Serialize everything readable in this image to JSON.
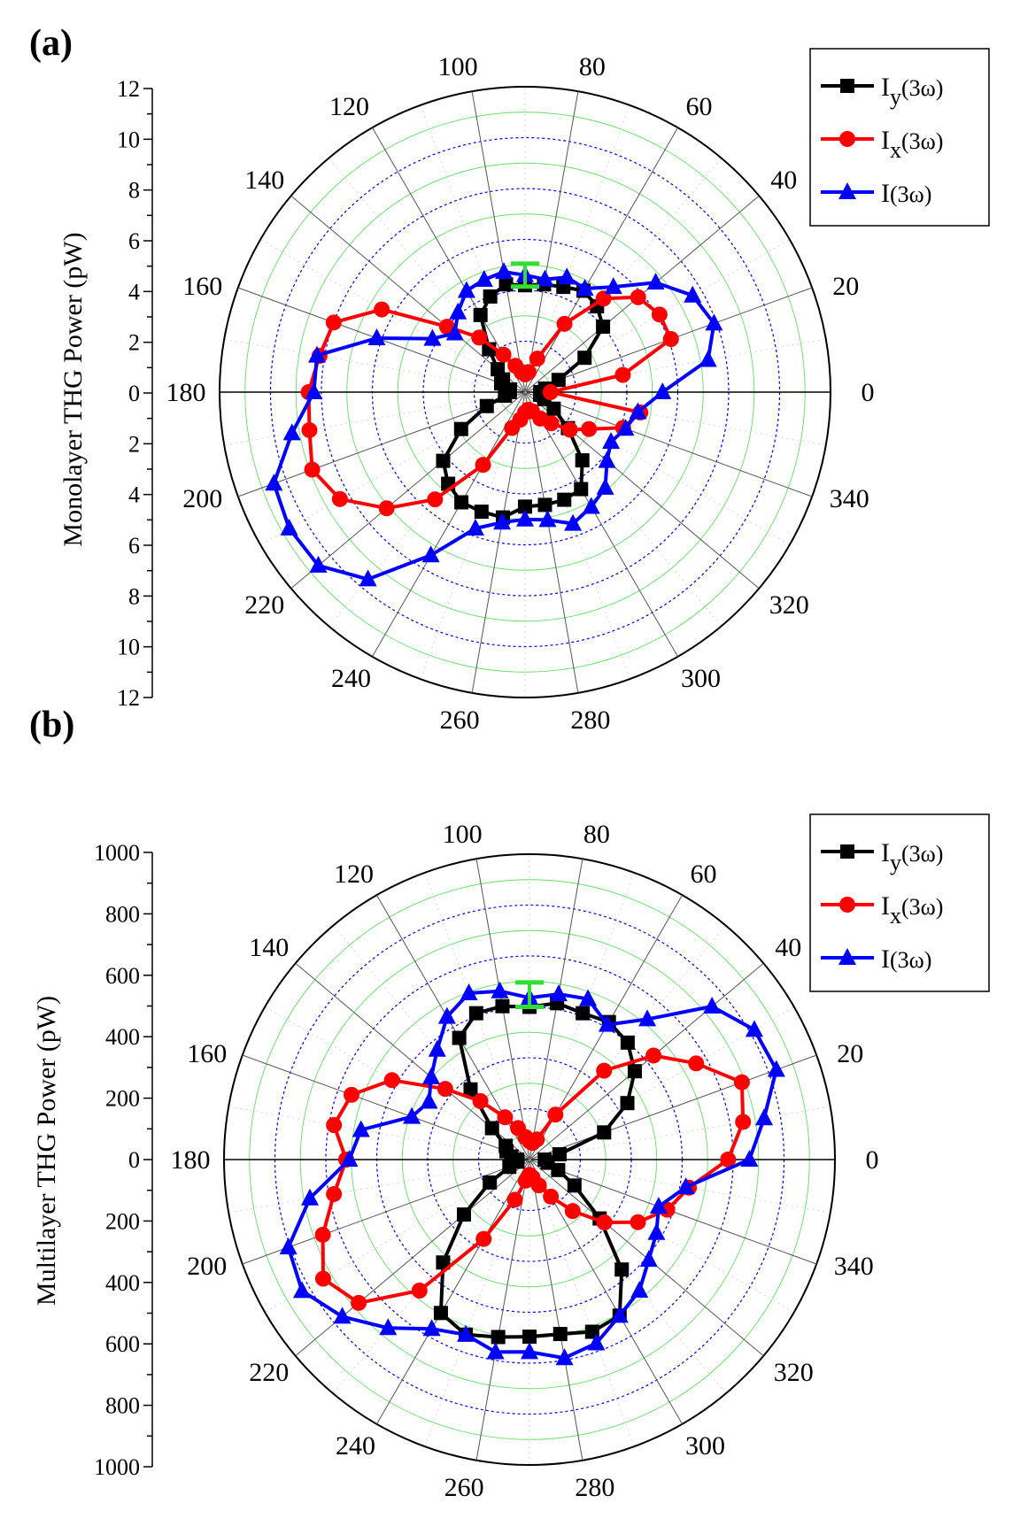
{
  "colors": {
    "Iy": "#000000",
    "Ix": "#ff0000",
    "I": "#0000ff",
    "errorbar": "#33dd33",
    "grid_major": "#0000ff",
    "grid_minor": "#66dd66",
    "spokes": "#555555"
  },
  "chart_data": [
    {
      "type": "polar_line",
      "panel_label": "(a)",
      "ylabel": "Monolayer THG Power (pW)",
      "radial_range": [
        0,
        12
      ],
      "radial_ticks": [
        "0",
        "2",
        "4",
        "6",
        "8",
        "10",
        "12"
      ],
      "angle_ticks": [
        "0",
        "20",
        "40",
        "60",
        "80",
        "100",
        "120",
        "140",
        "160",
        "180",
        "200",
        "220",
        "240",
        "260",
        "280",
        "300",
        "320",
        "340"
      ],
      "angles": [
        0,
        10,
        20,
        30,
        40,
        50,
        60,
        70,
        80,
        90,
        100,
        110,
        120,
        130,
        140,
        150,
        160,
        170,
        180,
        190,
        200,
        210,
        220,
        230,
        240,
        250,
        260,
        270,
        280,
        290,
        300,
        310,
        320,
        330,
        340,
        350
      ],
      "series": [
        {
          "name": "I_y(3ω)",
          "label_main": "I",
          "label_sub": "y",
          "label_rest": "(3ω)",
          "marker": "square",
          "color_key": "Iy",
          "values": [
            0.6,
            0.8,
            1.4,
            2.7,
            4.0,
            4.4,
            4.6,
            4.4,
            4.3,
            4.2,
            4.3,
            4.0,
            3.5,
            2.2,
            1.4,
            1.0,
            1.0,
            0.6,
            0.6,
            0.8,
            1.6,
            2.9,
            4.2,
            4.7,
            5.0,
            5.0,
            5.0,
            4.5,
            4.5,
            4.5,
            4.4,
            3.5,
            2.2,
            1.3,
            0.8,
            0.6
          ]
        },
        {
          "name": "I_x(3ω)",
          "label_main": "I",
          "label_sub": "x",
          "label_rest": "(3ω)",
          "marker": "circle",
          "color_key": "Ix",
          "values": [
            1.0,
            3.9,
            6.1,
            6.1,
            5.8,
            4.8,
            3.1,
            1.4,
            0.8,
            0.7,
            0.8,
            1.1,
            1.7,
            2.8,
            4.0,
            6.5,
            8.0,
            8.2,
            8.5,
            8.6,
            8.9,
            8.4,
            7.1,
            5.5,
            3.3,
            1.5,
            1.1,
            0.8,
            0.7,
            0.8,
            1.2,
            1.6,
            2.3,
            2.9,
            4.1,
            4.6
          ]
        },
        {
          "name": "I(3ω)",
          "label_main": "I",
          "label_sub": "",
          "label_rest": "(3ω)",
          "marker": "triangle",
          "color_key": "I",
          "values": [
            5.4,
            7.3,
            7.9,
            7.6,
            6.7,
            5.4,
            4.7,
            4.8,
            4.5,
            4.6,
            4.8,
            4.7,
            4.6,
            4.1,
            3.6,
            4.2,
            6.2,
            8.3,
            8.3,
            9.3,
            10.5,
            10.7,
            10.6,
            9.6,
            7.4,
            5.7,
            5.2,
            5.0,
            5.1,
            5.5,
            5.2,
            4.9,
            4.2,
            3.9,
            4.2,
            4.5
          ]
        }
      ],
      "errorbar": {
        "angle": 90,
        "value": 4.6,
        "error": 0.45
      }
    },
    {
      "type": "polar_line",
      "panel_label": "(b)",
      "ylabel": "Multilayer THG Power (pW)",
      "radial_range": [
        0,
        1000
      ],
      "radial_ticks": [
        "0",
        "200",
        "400",
        "600",
        "800",
        "1000"
      ],
      "angle_ticks": [
        "0",
        "20",
        "40",
        "60",
        "80",
        "100",
        "120",
        "140",
        "160",
        "180",
        "200",
        "220",
        "240",
        "260",
        "280",
        "300",
        "320",
        "340"
      ],
      "angles": [
        0,
        10,
        20,
        30,
        40,
        50,
        60,
        70,
        80,
        90,
        100,
        110,
        120,
        130,
        140,
        150,
        160,
        170,
        180,
        190,
        200,
        210,
        220,
        230,
        240,
        250,
        260,
        270,
        280,
        290,
        300,
        310,
        320,
        330,
        340,
        350
      ],
      "series": [
        {
          "name": "I_y(3ω)",
          "label_main": "I",
          "label_sub": "y",
          "label_rest": "(3ω)",
          "marker": "square",
          "color_key": "Iy",
          "values": [
            50,
            100,
            260,
            370,
            450,
            500,
            520,
            510,
            520,
            500,
            510,
            510,
            460,
            300,
            160,
            90,
            80,
            60,
            40,
            40,
            70,
            150,
            280,
            440,
            580,
            610,
            590,
            580,
            580,
            600,
            590,
            470,
            300,
            170,
            100,
            60
          ]
        },
        {
          "name": "I_x(3ω)",
          "label_main": "I",
          "label_sub": "x",
          "label_rest": "(3ω)",
          "marker": "circle",
          "color_key": "Ix",
          "values": [
            650,
            710,
            740,
            630,
            530,
            380,
            170,
            70,
            55,
            60,
            75,
            110,
            160,
            250,
            360,
            520,
            620,
            650,
            600,
            650,
            720,
            780,
            730,
            560,
            300,
            140,
            70,
            50,
            60,
            90,
            140,
            220,
            320,
            410,
            480,
            530
          ]
        },
        {
          "name": "I(3ω)",
          "label_main": "I",
          "label_sub": "",
          "label_rest": "(3ω)",
          "marker": "triangle",
          "color_key": "I",
          "values": [
            720,
            780,
            860,
            850,
            780,
            600,
            510,
            560,
            550,
            530,
            560,
            580,
            540,
            470,
            420,
            380,
            410,
            560,
            590,
            730,
            840,
            860,
            800,
            720,
            640,
            610,
            640,
            630,
            660,
            640,
            590,
            560,
            510,
            480,
            450,
            520
          ]
        }
      ],
      "errorbar": {
        "angle": 90,
        "value": 540,
        "error": 40
      }
    }
  ]
}
